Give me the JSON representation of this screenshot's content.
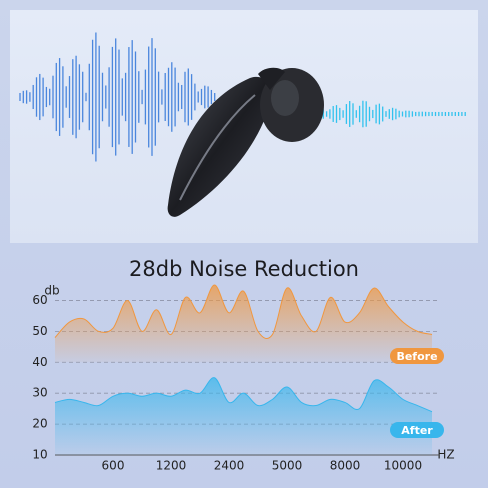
{
  "chart_data": {
    "type": "area",
    "title": "28db Noise Reduction",
    "y_label": "db",
    "x_label": "HZ",
    "categories": [
      null,
      null,
      null,
      null,
      "600",
      null,
      null,
      null,
      "1200",
      null,
      null,
      null,
      "2400",
      null,
      null,
      null,
      "5000",
      null,
      null,
      null,
      "8000",
      null,
      null,
      null,
      "10000",
      null,
      null
    ],
    "series": [
      {
        "name": "Before",
        "color": "#f0973f",
        "values": [
          48,
          53,
          54,
          50,
          51,
          60,
          50,
          57,
          49,
          61,
          56,
          65,
          56,
          63,
          50,
          49,
          64,
          55,
          50,
          61,
          53,
          56,
          64,
          58,
          53,
          50,
          49
        ]
      },
      {
        "name": "After",
        "color": "#38b6ec",
        "values": [
          27,
          28,
          27,
          26,
          29,
          30,
          29,
          30,
          29,
          31,
          30,
          35,
          27,
          30,
          26,
          28,
          32,
          27,
          26,
          28,
          27,
          25,
          34,
          32,
          28,
          26,
          24
        ]
      }
    ],
    "ylim": [
      10,
      65
    ],
    "yticks": [
      10,
      20,
      30,
      40,
      50,
      60
    ],
    "grid": true
  }
}
